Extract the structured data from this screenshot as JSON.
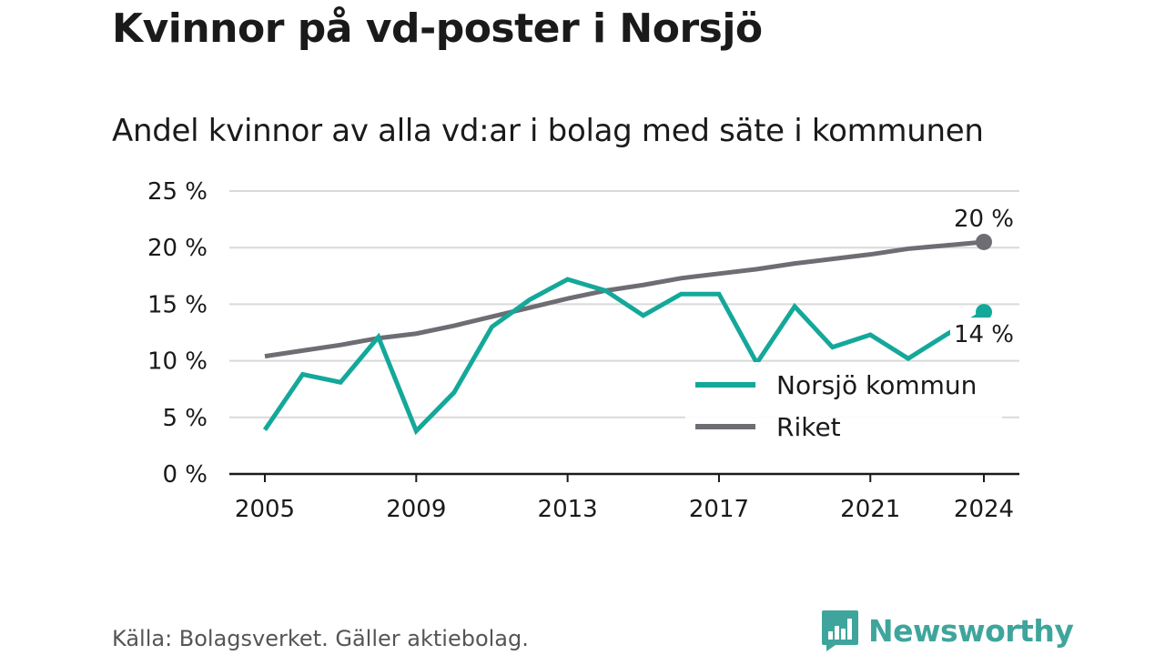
{
  "header": {
    "title": "Kvinnor på vd-poster i Norsjö",
    "subtitle": "Andel kvinnor av alla vd:ar i bolag med säte i kommunen"
  },
  "footer": {
    "source": "Källa: Bolagsverket. Gäller aktiebolag.",
    "brand": "Newsworthy"
  },
  "colors": {
    "norsjo": "#14a89a",
    "riket": "#6e6d73",
    "grid": "#d9d9d9",
    "axis": "#1a1a1a",
    "brand": "#3fa59c"
  },
  "chart_data": {
    "type": "line",
    "x": [
      2005,
      2006,
      2007,
      2008,
      2009,
      2010,
      2011,
      2012,
      2013,
      2014,
      2015,
      2016,
      2017,
      2018,
      2019,
      2020,
      2021,
      2022,
      2023,
      2024
    ],
    "x_ticks": [
      "2005",
      "2009",
      "2013",
      "2017",
      "2021",
      "2024"
    ],
    "y_ticks": [
      "0 %",
      "5 %",
      "10 %",
      "15 %",
      "20 %",
      "25 %"
    ],
    "ylim": [
      0,
      25
    ],
    "grid": true,
    "legend_position": "bottom-right",
    "series": [
      {
        "name": "Norsjö kommun",
        "color": "#14a89a",
        "values": [
          3.9,
          8.8,
          8.1,
          12.1,
          3.8,
          7.2,
          13.0,
          15.4,
          17.2,
          16.2,
          14.0,
          15.9,
          15.9,
          9.8,
          14.8,
          11.2,
          12.3,
          10.2,
          12.3,
          14.3
        ],
        "end_label": "14 %"
      },
      {
        "name": "Riket",
        "color": "#6e6d73",
        "values": [
          10.4,
          10.9,
          11.4,
          12.0,
          12.4,
          13.1,
          13.9,
          14.7,
          15.5,
          16.2,
          16.7,
          17.3,
          17.7,
          18.1,
          18.6,
          19.0,
          19.4,
          19.9,
          20.2,
          20.5
        ],
        "end_label": "20 %"
      }
    ]
  }
}
